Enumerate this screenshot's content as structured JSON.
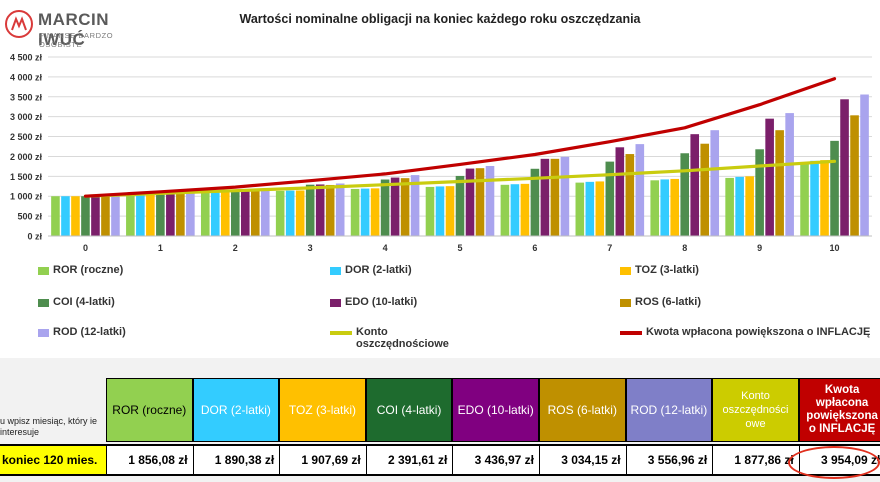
{
  "brand": {
    "name": "MARCIN IWUĆ",
    "tagline": "FINANSE BARDZO OSOBISTE"
  },
  "chart_data": {
    "type": "bar",
    "title": "Wartości nominalne obligacji na koniec każdego roku oszczędzania",
    "categories": [
      "0",
      "1",
      "2",
      "3",
      "4",
      "5",
      "6",
      "7",
      "8",
      "9",
      "10"
    ],
    "yticks": [
      "0 zł",
      "500 zł",
      "1 000 zł",
      "1 500 zł",
      "2 000 zł",
      "2 500 zł",
      "3 000 zł",
      "3 500 zł",
      "4 000 zł",
      "4 500 zł"
    ],
    "ylim": [
      0,
      4500
    ],
    "grid": true,
    "legend_position": "bottom",
    "series": [
      {
        "name": "ROR (roczne)",
        "color": "#92d050",
        "values": [
          1000,
          1043,
          1088,
          1134,
          1183,
          1234,
          1287,
          1342,
          1400,
          1460,
          1856
        ]
      },
      {
        "name": "DOR (2-latki)",
        "color": "#33ccff",
        "values": [
          1000,
          1045,
          1092,
          1141,
          1192,
          1246,
          1302,
          1361,
          1422,
          1486,
          1890
        ]
      },
      {
        "name": "TOZ (3-latki)",
        "color": "#ffc000",
        "values": [
          1000,
          1046,
          1095,
          1145,
          1198,
          1253,
          1311,
          1372,
          1435,
          1501,
          1908
        ]
      },
      {
        "name": "COI (4-latki)",
        "color": "#4e8d4e",
        "values": [
          1000,
          1060,
          1125,
          1290,
          1420,
          1510,
          1690,
          1870,
          2080,
          2180,
          2392
        ]
      },
      {
        "name": "EDO (10-latki)",
        "color": "#7b1f6a",
        "values": [
          1000,
          1068,
          1141,
          1296,
          1469,
          1695,
          1940,
          2230,
          2560,
          2950,
          3437
        ]
      },
      {
        "name": "ROS (6-latki)",
        "color": "#bf9000",
        "values": [
          1000,
          1064,
          1132,
          1283,
          1454,
          1705,
          1940,
          2060,
          2320,
          2660,
          3034
        ]
      },
      {
        "name": "ROD (12-latki)",
        "color": "#a9a4ee",
        "values": [
          1000,
          1069,
          1143,
          1320,
          1531,
          1760,
          1990,
          2310,
          2660,
          3090,
          3557
        ]
      },
      {
        "name": "Konto oszczędnościowe",
        "color": "#c9cc0f",
        "kind": "line",
        "values": [
          1000,
          1070,
          1140,
          1210,
          1290,
          1370,
          1450,
          1540,
          1640,
          1760,
          1878
        ]
      },
      {
        "name": "Kwota wpłacona powiększona o INFLACJĘ",
        "color": "#c00000",
        "kind": "line",
        "values": [
          1000,
          1110,
          1230,
          1390,
          1560,
          1800,
          2050,
          2370,
          2720,
          3300,
          3954
        ]
      }
    ]
  },
  "legend": [
    {
      "label": "ROR (roczne)",
      "color": "#92d050",
      "kind": "swatch"
    },
    {
      "label": "DOR (2-latki)",
      "color": "#33ccff",
      "kind": "swatch"
    },
    {
      "label": "TOZ (3-latki)",
      "color": "#ffc000",
      "kind": "swatch"
    },
    {
      "label": "COI (4-latki)",
      "color": "#4e8d4e",
      "kind": "swatch"
    },
    {
      "label": "EDO (10-latki)",
      "color": "#7b1f6a",
      "kind": "swatch"
    },
    {
      "label": "ROS (6-latki)",
      "color": "#bf9000",
      "kind": "swatch"
    },
    {
      "label": "ROD (12-latki)",
      "color": "#a9a4ee",
      "kind": "swatch"
    },
    {
      "label": "Konto oszczędnościowe",
      "color": "#c9cc0f",
      "kind": "line"
    },
    {
      "label": "Kwota wpłacona powiększona o INFLACJĘ",
      "color": "#c00000",
      "kind": "line"
    }
  ],
  "table": {
    "side_label": "u wpisz miesiąc, który ie interesuje",
    "row_label": "koniec 120 mies.",
    "columns": [
      {
        "header": "ROR (roczne)",
        "value": "1 856,08 zł",
        "bg": "#92d050",
        "fg": "#000000"
      },
      {
        "header": "DOR (2-latki)",
        "value": "1 890,38 zł",
        "bg": "#33ccff",
        "fg": "#ffffff"
      },
      {
        "header": "TOZ (3-latki)",
        "value": "1 907,69 zł",
        "bg": "#ffc000",
        "fg": "#ffffff"
      },
      {
        "header": "COI (4-latki)",
        "value": "2 391,61 zł",
        "bg": "#1e6b2e",
        "fg": "#ffffff"
      },
      {
        "header": "EDO (10-latki)",
        "value": "3 436,97 zł",
        "bg": "#800080",
        "fg": "#ffffff"
      },
      {
        "header": "ROS (6-latki)",
        "value": "3 034,15 zł",
        "bg": "#bf9000",
        "fg": "#ffffff"
      },
      {
        "header": "ROD (12-latki)",
        "value": "3 556,96 zł",
        "bg": "#7f7fc8",
        "fg": "#ffffff"
      },
      {
        "header": "Konto oszczędności owe",
        "value": "1 877,86 zł",
        "bg": "#cccc00",
        "fg": "#ffffff"
      },
      {
        "header": "Kwota wpłacona powiększona o INFLACJĘ",
        "value": "3 954,09 zł",
        "bg": "#c00000",
        "fg": "#ffffff"
      }
    ]
  }
}
